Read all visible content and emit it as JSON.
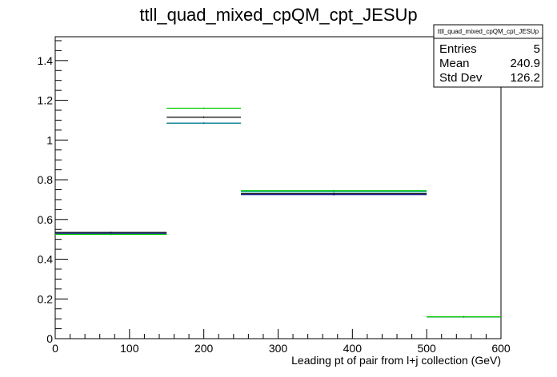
{
  "chart_data": {
    "type": "line",
    "title": "ttll_quad_mixed_cpQM_cpt_JESUp",
    "xlabel": "Leading pt of pair from l+j collection (GeV)",
    "ylabel": "",
    "xlim": [
      0,
      600
    ],
    "ylim": [
      0,
      1.52
    ],
    "x_ticks": [
      "0",
      "100",
      "200",
      "300",
      "400",
      "500",
      "600"
    ],
    "y_ticks": [
      "0",
      "0.2",
      "0.4",
      "0.6",
      "0.8",
      "1",
      "1.2",
      "1.4"
    ],
    "grid": false,
    "legend": "none",
    "bins": [
      [
        0,
        150
      ],
      [
        150,
        250
      ],
      [
        250,
        500
      ],
      [
        500,
        600
      ]
    ],
    "series": [
      {
        "color": "#000000",
        "values": [
          0.535,
          1.115,
          0.73,
          0.11
        ]
      },
      {
        "color": "#000080",
        "values": [
          0.53,
          1.085,
          0.725,
          0.11
        ]
      },
      {
        "color": "#009090",
        "values": [
          0.525,
          1.085,
          0.74,
          0.11
        ]
      },
      {
        "color": "#00cc00",
        "values": [
          0.525,
          1.16,
          0.745,
          0.11
        ]
      }
    ]
  },
  "stats": {
    "name": "ttll_quad_mixed_cpQM_cpt_JESUp",
    "rows": [
      {
        "label": "Entries",
        "value": "5"
      },
      {
        "label": "Mean",
        "value": "240.9"
      },
      {
        "label": "Std Dev",
        "value": "126.2"
      }
    ]
  }
}
